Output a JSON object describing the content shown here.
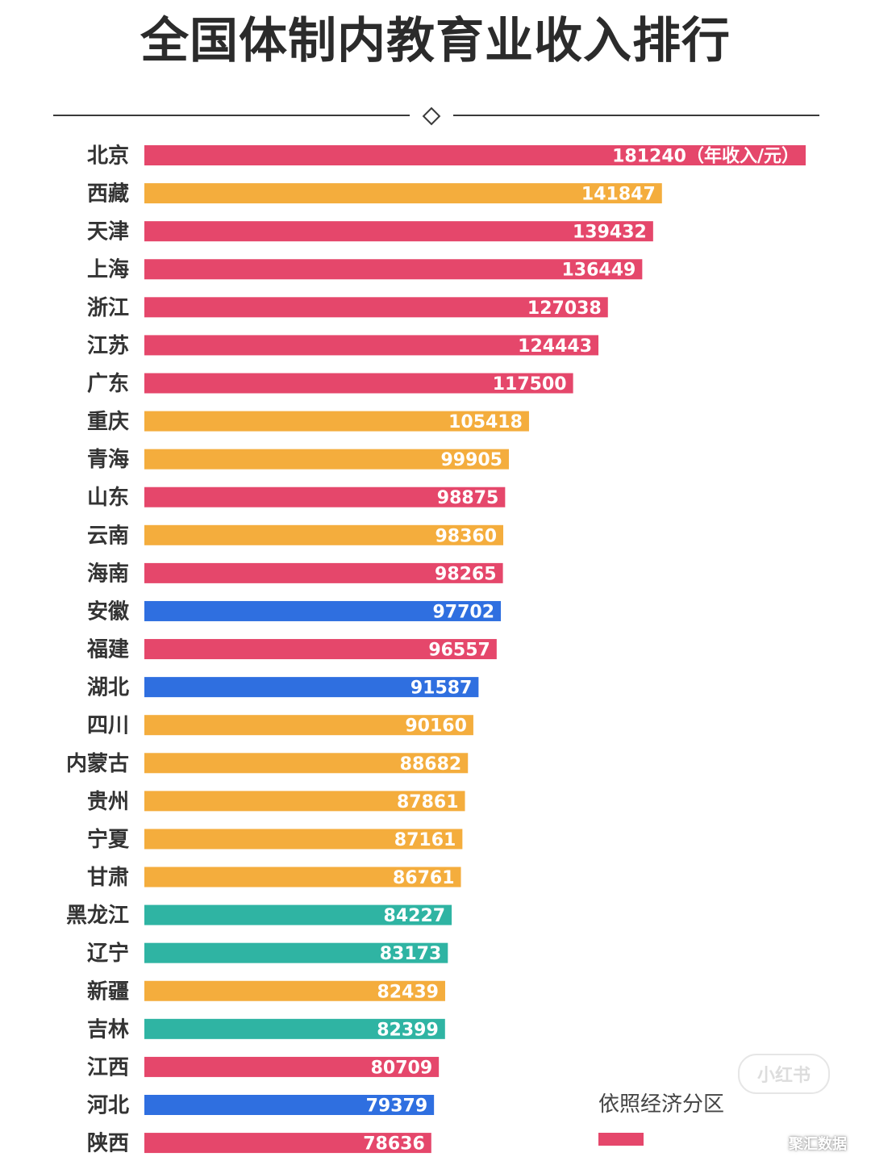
{
  "title": "全国体制内教育业收入排行",
  "colors": {
    "red": "#e5476b",
    "orange": "#f4ad3d",
    "blue": "#2f6fe0",
    "teal": "#2fb4a3"
  },
  "legend": {
    "title": "依照经济分区",
    "swatch_color": "#e5476b"
  },
  "watermark": {
    "badge": "小红书",
    "source": "聚汇数据"
  },
  "chart_data": {
    "type": "bar",
    "orientation": "horizontal",
    "title": "全国体制内教育业收入排行",
    "unit": "（年收入/元）",
    "categories": [
      "北京",
      "西藏",
      "天津",
      "上海",
      "浙江",
      "江苏",
      "广东",
      "重庆",
      "青海",
      "山东",
      "云南",
      "海南",
      "安徽",
      "福建",
      "湖北",
      "四川",
      "内蒙古",
      "贵州",
      "宁夏",
      "甘肃",
      "黑龙江",
      "辽宁",
      "新疆",
      "吉林",
      "江西",
      "河北",
      "陕西"
    ],
    "values": [
      181240,
      141847,
      139432,
      136449,
      127038,
      124443,
      117500,
      105418,
      99905,
      98875,
      98360,
      98265,
      97702,
      96557,
      91587,
      90160,
      88682,
      87861,
      87161,
      86761,
      84227,
      83173,
      82439,
      82399,
      80709,
      79379,
      78636
    ],
    "bar_colors": [
      "red",
      "orange",
      "red",
      "red",
      "red",
      "red",
      "red",
      "orange",
      "orange",
      "red",
      "orange",
      "red",
      "blue",
      "red",
      "blue",
      "orange",
      "orange",
      "orange",
      "orange",
      "orange",
      "teal",
      "teal",
      "orange",
      "teal",
      "red",
      "blue",
      "red"
    ],
    "xlim": [
      0,
      181240
    ]
  }
}
